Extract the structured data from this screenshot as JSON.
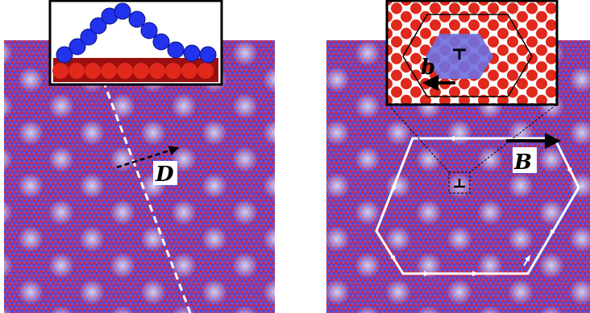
{
  "panels": [
    {
      "label": "D"
    },
    {
      "label": "B",
      "inset_label": "b"
    }
  ]
}
